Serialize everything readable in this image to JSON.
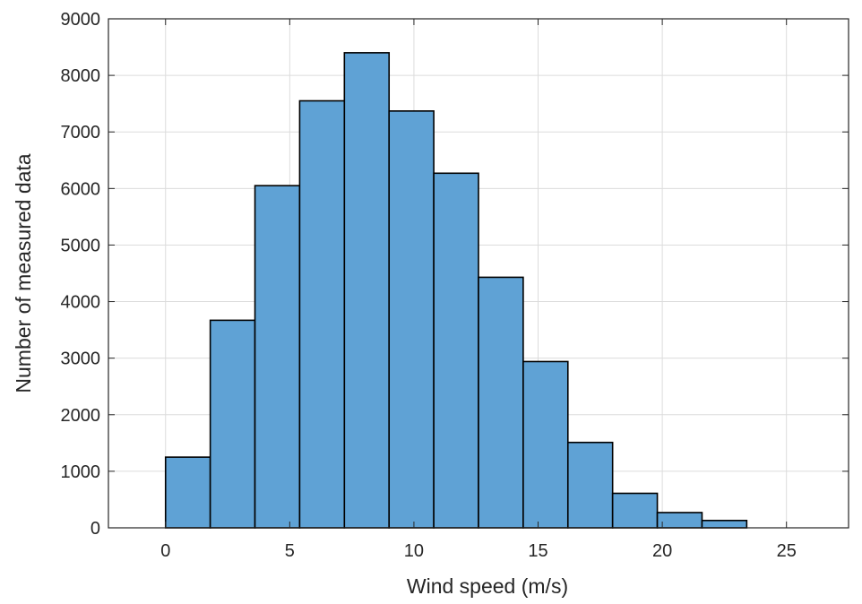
{
  "chart_data": {
    "type": "bar",
    "title": "",
    "xlabel": "Wind speed (m/s)",
    "ylabel": "Number of measured data",
    "xlim": [
      -2.3,
      27.5
    ],
    "ylim": [
      0,
      9000
    ],
    "xticks": [
      0,
      5,
      10,
      15,
      20,
      25
    ],
    "yticks": [
      0,
      1000,
      2000,
      3000,
      4000,
      5000,
      6000,
      7000,
      8000,
      9000
    ],
    "grid": true,
    "bar_color": "#5fa2d5",
    "bar_edge_color": "#000000",
    "bins": [
      {
        "x0": 0.0,
        "x1": 1.8,
        "value": 1250
      },
      {
        "x0": 1.8,
        "x1": 3.6,
        "value": 3670
      },
      {
        "x0": 3.6,
        "x1": 5.4,
        "value": 6050
      },
      {
        "x0": 5.4,
        "x1": 7.2,
        "value": 7550
      },
      {
        "x0": 7.2,
        "x1": 9.0,
        "value": 8400
      },
      {
        "x0": 9.0,
        "x1": 10.8,
        "value": 7370
      },
      {
        "x0": 10.8,
        "x1": 12.6,
        "value": 6270
      },
      {
        "x0": 12.6,
        "x1": 14.4,
        "value": 4430
      },
      {
        "x0": 14.4,
        "x1": 16.2,
        "value": 2940
      },
      {
        "x0": 16.2,
        "x1": 18.0,
        "value": 1510
      },
      {
        "x0": 18.0,
        "x1": 19.8,
        "value": 610
      },
      {
        "x0": 19.8,
        "x1": 21.6,
        "value": 270
      },
      {
        "x0": 21.6,
        "x1": 23.4,
        "value": 130
      }
    ]
  }
}
